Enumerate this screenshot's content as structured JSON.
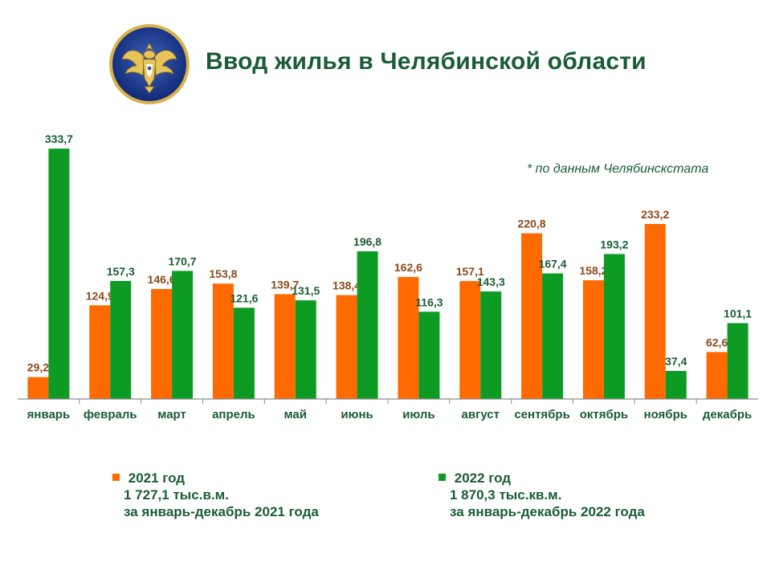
{
  "header": {
    "title": "Ввод жилья в Челябинской области",
    "emblem_icon": "double-headed-eagle-emblem"
  },
  "source_note": "* по данным Челябинскстата",
  "colors": {
    "series_2021": "#ff6a00",
    "series_2022": "#0d9b24",
    "label_2021": "#8b4a1a",
    "label_2022": "#1a5c36"
  },
  "chart_data": {
    "type": "bar",
    "categories": [
      "январь",
      "февраль",
      "март",
      "апрель",
      "май",
      "июнь",
      "июль",
      "август",
      "сентябрь",
      "октябрь",
      "ноябрь",
      "декабрь"
    ],
    "series": [
      {
        "name": "2021 год",
        "values": [
          29.2,
          124.9,
          146.6,
          153.8,
          139.7,
          138.4,
          162.6,
          157.1,
          220.8,
          158.2,
          233.2,
          62.6
        ],
        "labels": [
          "29,2",
          "124,9",
          "146,6",
          "153,8",
          "139,7",
          "138,4",
          "162,6",
          "157,1",
          "220,8",
          "158,2",
          "233,2",
          "62,6"
        ]
      },
      {
        "name": "2022 год",
        "values": [
          333.7,
          157.3,
          170.7,
          121.6,
          131.5,
          196.8,
          116.3,
          143.3,
          167.4,
          193.2,
          37.4,
          101.1
        ],
        "labels": [
          "333,7",
          "157,3",
          "170,7",
          "121,6",
          "131,5",
          "196,8",
          "116,3",
          "143,3",
          "167,4",
          "193,2",
          "37,4",
          "101,1"
        ]
      }
    ],
    "ylim": [
      0,
      340
    ],
    "grid": false
  },
  "legend": {
    "series_2021": {
      "name": "2021 год",
      "total": "1 727,1 тыс.в.м.",
      "period": "за январь-декабрь 2021 года"
    },
    "series_2022": {
      "name": "2022 год",
      "total": "1 870,3 тыс.кв.м.",
      "period": "за январь-декабрь 2022 года"
    }
  }
}
